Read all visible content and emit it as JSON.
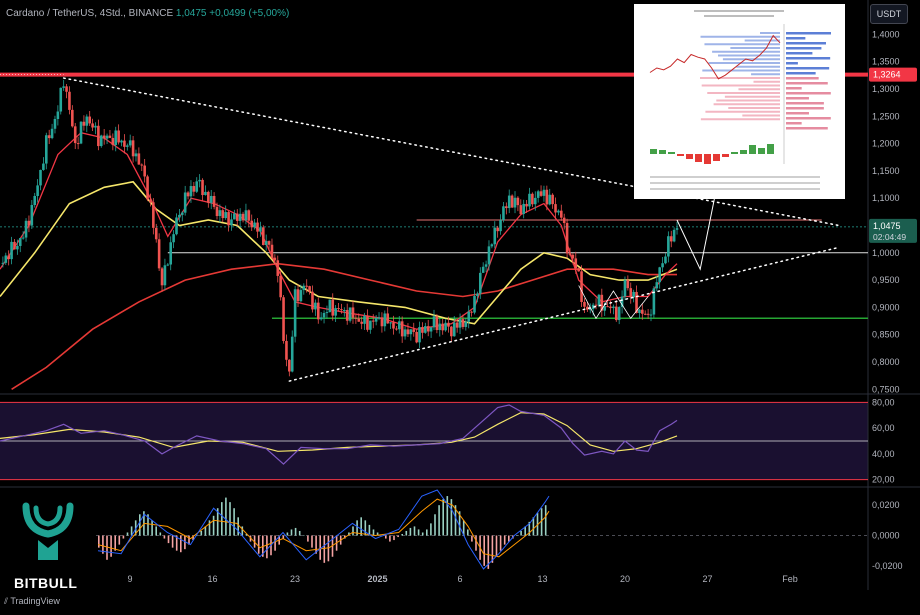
{
  "header": {
    "symbol": "Cardano / TetherUS, 4Std., BINANCE",
    "last": "1,0475",
    "change": "+0,0499 (+5,00%)"
  },
  "currency_button": "USDT",
  "footer_logo": "TradingView",
  "brand": {
    "name": "BITBULL"
  },
  "price_tags": {
    "resistance": "1,3264",
    "current": "1,0475",
    "countdown": "02:04:49"
  },
  "colors": {
    "background": "#000000",
    "resistance": "#f23645",
    "support": "#26a633",
    "rsi_band": "#1a1030",
    "ma_fast": "#f23645",
    "ma_mid": "#f5e66a",
    "ma_slow": "#e53935",
    "rsi_line": "#7e57c2",
    "rsi_signal": "#f5e66a",
    "macd_up": "#9ad0c2",
    "macd_down": "#f5a3a3",
    "brand_teal": "#1fa393"
  },
  "chart_data": [
    {
      "type": "candlestick",
      "panel": "price",
      "y_axis_ticks": [
        "1,4000",
        "1,3500",
        "1,3000",
        "1,2500",
        "1,2000",
        "1,1500",
        "1,1000",
        "1,0500",
        "1,0000",
        "0,9500",
        "0,9000",
        "0,8500",
        "0,8000",
        "0,7500"
      ],
      "ylim": [
        0.745,
        1.43
      ],
      "x_axis_ticks": [
        "9",
        "16",
        "23",
        "2025",
        "6",
        "13",
        "20",
        "27",
        "Feb"
      ],
      "path": [
        [
          0,
          0.98
        ],
        [
          4,
          1.03
        ],
        [
          6,
          1.1
        ],
        [
          8,
          1.2
        ],
        [
          10,
          1.26
        ],
        [
          11,
          1.32
        ],
        [
          13,
          1.2
        ],
        [
          15,
          1.25
        ],
        [
          17,
          1.21
        ],
        [
          20,
          1.21
        ],
        [
          23,
          1.19
        ],
        [
          25,
          1.14
        ],
        [
          27,
          1.02
        ],
        [
          28,
          0.94
        ],
        [
          30,
          1.04
        ],
        [
          32,
          1.1
        ],
        [
          34,
          1.13
        ],
        [
          36,
          1.1
        ],
        [
          38,
          1.07
        ],
        [
          40,
          1.06
        ],
        [
          42,
          1.07
        ],
        [
          44,
          1.05
        ],
        [
          46,
          1.02
        ],
        [
          48,
          0.97
        ],
        [
          49,
          0.84
        ],
        [
          50,
          0.78
        ],
        [
          51,
          0.92
        ],
        [
          53,
          0.94
        ],
        [
          55,
          0.88
        ],
        [
          57,
          0.9
        ],
        [
          60,
          0.89
        ],
        [
          63,
          0.87
        ],
        [
          66,
          0.88
        ],
        [
          69,
          0.86
        ],
        [
          72,
          0.85
        ],
        [
          75,
          0.87
        ],
        [
          78,
          0.86
        ],
        [
          81,
          0.88
        ],
        [
          84,
          0.99
        ],
        [
          86,
          1.05
        ],
        [
          88,
          1.1
        ],
        [
          90,
          1.08
        ],
        [
          92,
          1.1
        ],
        [
          94,
          1.11
        ],
        [
          96,
          1.08
        ],
        [
          97,
          1.07
        ],
        [
          98,
          1.01
        ],
        [
          100,
          0.96
        ],
        [
          101,
          0.89
        ],
        [
          103,
          0.91
        ],
        [
          105,
          0.9
        ],
        [
          107,
          0.89
        ],
        [
          108,
          0.95
        ],
        [
          110,
          0.9
        ],
        [
          112,
          0.88
        ],
        [
          114,
          0.97
        ],
        [
          116,
          1.03
        ],
        [
          117,
          1.05
        ]
      ],
      "ma_fast": [
        [
          0,
          0.97
        ],
        [
          5,
          1.05
        ],
        [
          10,
          1.18
        ],
        [
          14,
          1.22
        ],
        [
          18,
          1.21
        ],
        [
          22,
          1.18
        ],
        [
          26,
          1.1
        ],
        [
          29,
          1.03
        ],
        [
          33,
          1.1
        ],
        [
          37,
          1.09
        ],
        [
          41,
          1.07
        ],
        [
          45,
          1.04
        ],
        [
          48,
          0.97
        ],
        [
          51,
          0.91
        ],
        [
          55,
          0.9
        ],
        [
          60,
          0.89
        ],
        [
          66,
          0.88
        ],
        [
          72,
          0.86
        ],
        [
          78,
          0.87
        ],
        [
          82,
          0.9
        ],
        [
          86,
          1.02
        ],
        [
          90,
          1.07
        ],
        [
          94,
          1.09
        ],
        [
          97,
          1.05
        ],
        [
          100,
          0.95
        ],
        [
          104,
          0.91
        ],
        [
          108,
          0.92
        ],
        [
          112,
          0.92
        ],
        [
          115,
          0.96
        ],
        [
          117,
          0.98
        ]
      ],
      "ma_mid": [
        [
          0,
          0.92
        ],
        [
          6,
          1.0
        ],
        [
          12,
          1.09
        ],
        [
          18,
          1.12
        ],
        [
          23,
          1.13
        ],
        [
          27,
          1.08
        ],
        [
          31,
          1.05
        ],
        [
          36,
          1.06
        ],
        [
          41,
          1.05
        ],
        [
          46,
          1.0
        ],
        [
          50,
          0.95
        ],
        [
          55,
          0.92
        ],
        [
          62,
          0.91
        ],
        [
          70,
          0.9
        ],
        [
          77,
          0.88
        ],
        [
          82,
          0.87
        ],
        [
          86,
          0.92
        ],
        [
          90,
          0.97
        ],
        [
          94,
          1.0
        ],
        [
          98,
          0.99
        ],
        [
          102,
          0.96
        ],
        [
          107,
          0.95
        ],
        [
          112,
          0.95
        ],
        [
          117,
          0.97
        ]
      ],
      "ma_slow": [
        [
          2,
          0.75
        ],
        [
          8,
          0.79
        ],
        [
          16,
          0.86
        ],
        [
          24,
          0.91
        ],
        [
          32,
          0.95
        ],
        [
          40,
          0.97
        ],
        [
          48,
          0.98
        ],
        [
          56,
          0.97
        ],
        [
          64,
          0.95
        ],
        [
          72,
          0.93
        ],
        [
          80,
          0.92
        ],
        [
          86,
          0.93
        ],
        [
          92,
          0.95
        ],
        [
          98,
          0.97
        ],
        [
          106,
          0.97
        ],
        [
          112,
          0.96
        ],
        [
          117,
          0.96
        ]
      ],
      "levels": {
        "resistance": 1.3264,
        "mid_resistance": 1.06,
        "pivot": 1.0,
        "support": 0.88,
        "current": 1.0475
      },
      "triangle": {
        "upper": [
          [
            11,
            1.32
          ],
          [
            145,
            1.05
          ]
        ],
        "lower": [
          [
            50,
            0.765
          ],
          [
            145,
            1.01
          ]
        ]
      },
      "projection": [
        [
          117,
          1.06
        ],
        [
          121,
          0.97
        ],
        [
          125,
          1.18
        ]
      ]
    },
    {
      "type": "line",
      "panel": "RSI",
      "y_axis_ticks": [
        "80,00",
        "60,00",
        "40,00",
        "20,00"
      ],
      "ylim": [
        15,
        85
      ],
      "band": [
        20,
        80
      ],
      "rsi": [
        [
          0,
          50
        ],
        [
          4,
          54
        ],
        [
          8,
          58
        ],
        [
          11,
          63
        ],
        [
          14,
          56
        ],
        [
          18,
          58
        ],
        [
          21,
          55
        ],
        [
          25,
          50
        ],
        [
          28,
          40
        ],
        [
          30,
          45
        ],
        [
          34,
          54
        ],
        [
          38,
          50
        ],
        [
          42,
          48
        ],
        [
          46,
          44
        ],
        [
          49,
          32
        ],
        [
          52,
          45
        ],
        [
          56,
          44
        ],
        [
          60,
          44
        ],
        [
          64,
          47
        ],
        [
          68,
          46
        ],
        [
          72,
          47
        ],
        [
          76,
          48
        ],
        [
          80,
          52
        ],
        [
          84,
          68
        ],
        [
          86,
          76
        ],
        [
          88,
          78
        ],
        [
          90,
          73
        ],
        [
          94,
          70
        ],
        [
          97,
          60
        ],
        [
          99,
          48
        ],
        [
          101,
          39
        ],
        [
          104,
          42
        ],
        [
          106,
          40
        ],
        [
          108,
          50
        ],
        [
          110,
          43
        ],
        [
          112,
          42
        ],
        [
          114,
          58
        ],
        [
          116,
          63
        ],
        [
          117,
          66
        ]
      ],
      "signal": [
        [
          0,
          52
        ],
        [
          6,
          55
        ],
        [
          12,
          59
        ],
        [
          18,
          57
        ],
        [
          24,
          53
        ],
        [
          30,
          45
        ],
        [
          36,
          50
        ],
        [
          42,
          49
        ],
        [
          48,
          42
        ],
        [
          54,
          43
        ],
        [
          60,
          45
        ],
        [
          66,
          46
        ],
        [
          72,
          47
        ],
        [
          78,
          49
        ],
        [
          82,
          53
        ],
        [
          86,
          63
        ],
        [
          90,
          72
        ],
        [
          94,
          71
        ],
        [
          98,
          62
        ],
        [
          102,
          47
        ],
        [
          106,
          42
        ],
        [
          110,
          44
        ],
        [
          114,
          49
        ],
        [
          117,
          54
        ]
      ]
    },
    {
      "type": "bar",
      "panel": "MACD",
      "y_axis_ticks": [
        "0,0200",
        "0,0000",
        "-0,0200"
      ],
      "ylim": [
        -0.028,
        0.03
      ],
      "histogram": [
        -0.008,
        -0.012,
        -0.016,
        -0.014,
        -0.01,
        -0.006,
        -0.002,
        0.002,
        0.006,
        0.01,
        0.014,
        0.016,
        0.014,
        0.01,
        0.006,
        0.002,
        -0.002,
        -0.005,
        -0.008,
        -0.01,
        -0.011,
        -0.009,
        -0.006,
        -0.003,
        0.0,
        0.003,
        0.006,
        0.01,
        0.013,
        0.018,
        0.022,
        0.025,
        0.022,
        0.018,
        0.012,
        0.006,
        0.001,
        -0.004,
        -0.008,
        -0.012,
        -0.014,
        -0.015,
        -0.013,
        -0.01,
        -0.006,
        -0.002,
        0.002,
        0.004,
        0.005,
        0.003,
        0.0,
        -0.004,
        -0.008,
        -0.012,
        -0.016,
        -0.018,
        -0.017,
        -0.014,
        -0.01,
        -0.006,
        -0.002,
        0.002,
        0.006,
        0.01,
        0.012,
        0.01,
        0.007,
        0.004,
        0.002,
        0.0,
        -0.002,
        -0.004,
        -0.003,
        -0.001,
        0.001,
        0.003,
        0.005,
        0.006,
        0.004,
        0.002,
        0.004,
        0.008,
        0.014,
        0.02,
        0.024,
        0.026,
        0.024,
        0.02,
        0.016,
        0.01,
        0.004,
        -0.004,
        -0.01,
        -0.016,
        -0.02,
        -0.022,
        -0.018,
        -0.014,
        -0.01,
        -0.006,
        -0.004,
        -0.002,
        0.0,
        0.003,
        0.006,
        0.009,
        0.012,
        0.015,
        0.018,
        0.02
      ],
      "macd_line": [
        [
          0,
          -0.01
        ],
        [
          6,
          -0.012
        ],
        [
          12,
          0.014
        ],
        [
          18,
          0.002
        ],
        [
          24,
          -0.006
        ],
        [
          30,
          0.018
        ],
        [
          36,
          0.004
        ],
        [
          42,
          -0.014
        ],
        [
          48,
          0.002
        ],
        [
          54,
          -0.016
        ],
        [
          60,
          -0.004
        ],
        [
          66,
          0.008
        ],
        [
          72,
          -0.002
        ],
        [
          78,
          0.004
        ],
        [
          84,
          0.026
        ],
        [
          88,
          0.03
        ],
        [
          92,
          0.016
        ],
        [
          96,
          -0.006
        ],
        [
          100,
          -0.022
        ],
        [
          104,
          -0.012
        ],
        [
          108,
          0.0
        ],
        [
          112,
          0.008
        ],
        [
          116,
          0.022
        ],
        [
          117,
          0.026
        ]
      ],
      "signal_line": [
        [
          0,
          -0.006
        ],
        [
          6,
          -0.01
        ],
        [
          12,
          0.008
        ],
        [
          18,
          0.006
        ],
        [
          24,
          -0.002
        ],
        [
          30,
          0.01
        ],
        [
          36,
          0.008
        ],
        [
          42,
          -0.008
        ],
        [
          48,
          -0.002
        ],
        [
          54,
          -0.01
        ],
        [
          60,
          -0.008
        ],
        [
          66,
          0.002
        ],
        [
          72,
          0.0
        ],
        [
          78,
          0.002
        ],
        [
          84,
          0.016
        ],
        [
          88,
          0.024
        ],
        [
          92,
          0.02
        ],
        [
          96,
          0.006
        ],
        [
          100,
          -0.012
        ],
        [
          104,
          -0.014
        ],
        [
          108,
          -0.006
        ],
        [
          112,
          0.002
        ],
        [
          116,
          0.012
        ],
        [
          117,
          0.016
        ]
      ]
    },
    {
      "type": "line",
      "panel": "inset-liquidation-map",
      "series": [
        {
          "values": [
            0.55,
            0.6,
            0.58,
            0.62,
            0.7,
            0.66,
            0.75,
            0.72,
            0.7,
            0.6,
            0.48,
            0.52,
            0.58,
            0.64,
            0.7,
            0.68,
            0.74,
            0.82,
            0.96,
            0.88
          ]
        }
      ],
      "histogram": [
        0.5,
        0.4,
        0.2,
        -0.2,
        -0.5,
        -0.8,
        -1.0,
        -0.7,
        -0.3,
        0.2,
        0.4,
        0.9,
        0.6,
        1.0
      ]
    }
  ]
}
